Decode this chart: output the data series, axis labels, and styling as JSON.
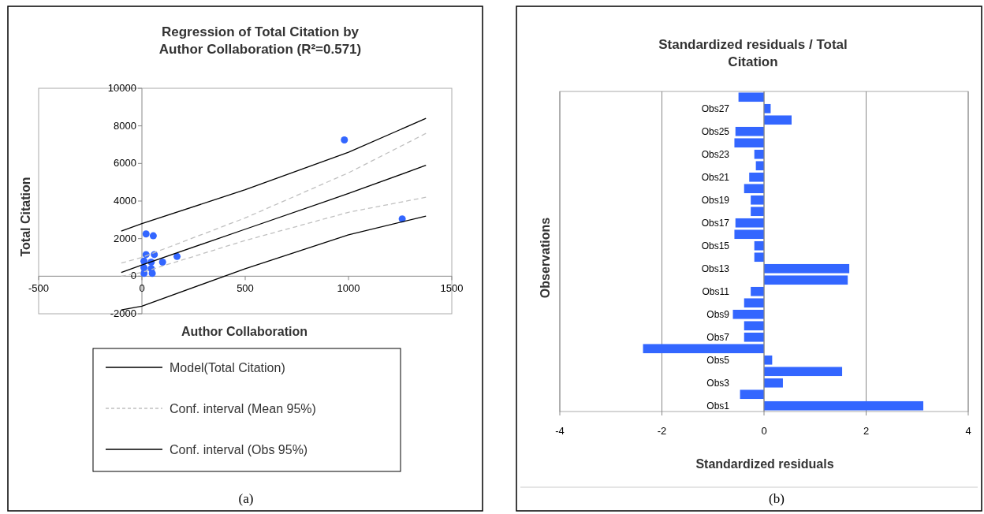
{
  "chart_data": [
    {
      "type": "scatter",
      "title": "Regression of Total Citation by Author Collaboration (R²=0.571)",
      "xlabel": "Author Collaboration",
      "ylabel": "Total Citation",
      "xlim": [
        -500,
        1500
      ],
      "xticks": [
        -500,
        0,
        500,
        1000,
        1500
      ],
      "ylim": [
        -2000,
        10000
      ],
      "yticks": [
        -2000,
        0,
        2000,
        4000,
        6000,
        8000,
        10000
      ],
      "grid": false,
      "legend": "bottom",
      "annotations": [
        "(a)"
      ],
      "series": [
        {
          "type": "scatter",
          "color": "#3366ff",
          "marker": "circle",
          "x": [
            980,
            1260,
            20,
            55,
            170,
            100,
            20,
            60,
            10,
            45,
            10,
            45,
            10,
            50
          ],
          "values": [
            7250,
            3050,
            2250,
            2150,
            1050,
            750,
            1150,
            1150,
            800,
            750,
            450,
            400,
            150,
            150
          ]
        },
        {
          "type": "line",
          "name": "Model(Total Citation)",
          "color": "#000000",
          "line_style": "solid",
          "x": [
            -100,
            0,
            500,
            1000,
            1375
          ],
          "values": [
            200,
            600,
            2500,
            4400,
            5900
          ]
        },
        {
          "type": "line",
          "name": "Conf. interval (Mean 95%)",
          "color": "#c0c0c0",
          "line_style": "dashed",
          "x": [
            -100,
            0,
            500,
            1000,
            1375
          ],
          "values": [
            700,
            1000,
            3100,
            5500,
            7600
          ]
        },
        {
          "type": "line",
          "color": "#c0c0c0",
          "line_style": "dashed",
          "x": [
            -100,
            0,
            500,
            1000,
            1375
          ],
          "values": [
            0,
            200,
            1900,
            3400,
            4200
          ]
        },
        {
          "type": "line",
          "name": "Conf. interval (Obs 95%)",
          "color": "#000000",
          "line_style": "solid",
          "x": [
            -100,
            0,
            500,
            1000,
            1375
          ],
          "values": [
            2400,
            2800,
            4600,
            6600,
            8400
          ]
        },
        {
          "type": "line",
          "color": "#000000",
          "line_style": "solid",
          "x": [
            -100,
            0,
            500,
            1000,
            1375
          ],
          "values": [
            -1800,
            -1600,
            400,
            2200,
            3200
          ]
        }
      ]
    },
    {
      "type": "bar",
      "orientation": "horizontal",
      "title": "Standardized residuals / Total Citation",
      "xlabel": "Standardized residuals",
      "ylabel": "Observations",
      "xlim": [
        -4,
        4
      ],
      "xticks": [
        -4,
        -2,
        0,
        2,
        4
      ],
      "grid": "x",
      "annotations": [
        "(b)"
      ],
      "color": "#3366ff",
      "categories": [
        null,
        "Obs27",
        null,
        "Obs25",
        null,
        "Obs23",
        null,
        "Obs21",
        null,
        "Obs19",
        null,
        "Obs17",
        null,
        "Obs15",
        null,
        "Obs13",
        null,
        "Obs11",
        null,
        "Obs9",
        null,
        "Obs7",
        null,
        "Obs5",
        null,
        "Obs3",
        null,
        "Obs1"
      ],
      "values": [
        -0.5,
        0.13,
        0.54,
        -0.56,
        -0.58,
        -0.19,
        -0.16,
        -0.29,
        -0.39,
        -0.26,
        -0.26,
        -0.56,
        -0.58,
        -0.19,
        -0.19,
        1.67,
        1.64,
        -0.26,
        -0.39,
        -0.61,
        -0.39,
        -0.39,
        -2.37,
        0.16,
        1.53,
        0.37,
        -0.47,
        3.12
      ]
    }
  ]
}
